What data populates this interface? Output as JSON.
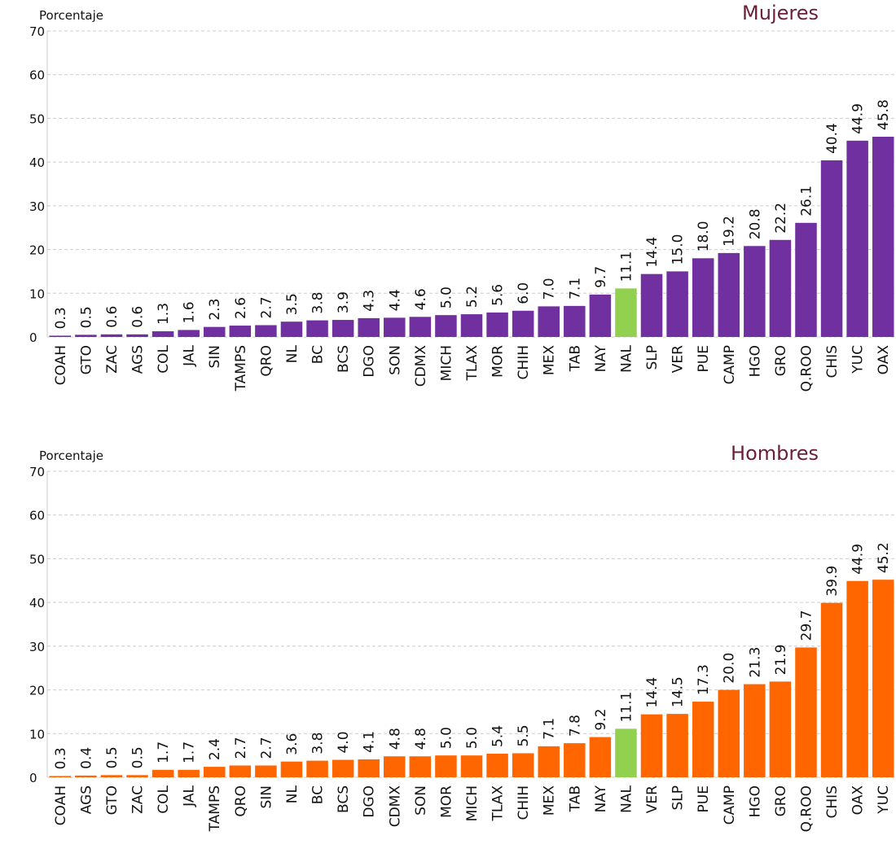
{
  "chart_data": [
    {
      "type": "bar",
      "title": "Mujeres",
      "y_label": "Porcentaje",
      "categories": [
        "COAH",
        "GTO",
        "ZAC",
        "AGS",
        "COL",
        "JAL",
        "SIN",
        "TAMPS",
        "QRO",
        "NL",
        "BC",
        "BCS",
        "DGO",
        "SON",
        "CDMX",
        "MICH",
        "TLAX",
        "MOR",
        "CHIH",
        "MEX",
        "TAB",
        "NAY",
        "NAL",
        "SLP",
        "VER",
        "PUE",
        "CAMP",
        "HGO",
        "GRO",
        "Q.ROO",
        "CHIS",
        "YUC",
        "OAX"
      ],
      "values": [
        0.3,
        0.5,
        0.6,
        0.6,
        1.3,
        1.6,
        2.3,
        2.6,
        2.7,
        3.5,
        3.8,
        3.9,
        4.3,
        4.4,
        4.6,
        5.0,
        5.2,
        5.6,
        6.0,
        7.0,
        7.1,
        9.7,
        11.1,
        14.4,
        15.0,
        18.0,
        19.2,
        20.8,
        22.2,
        26.1,
        40.4,
        44.9,
        45.8
      ],
      "value_labels": [
        "0.3",
        "0.5",
        "0.6",
        "0.6",
        "1.3",
        "1.6",
        "2.3",
        "2.6",
        "2.7",
        "3.5",
        "3.8",
        "3.9",
        "4.3",
        "4.4",
        "4.6",
        "5.0",
        "5.2",
        "5.6",
        "6.0",
        "7.0",
        "7.1",
        "9.7",
        "11.1",
        "14.4",
        "15.0",
        "18.0",
        "19.2",
        "20.8",
        "22.2",
        "26.1",
        "40.4",
        "44.9",
        "45.8"
      ],
      "colors": [
        "#7030a0",
        "#7030a0",
        "#7030a0",
        "#7030a0",
        "#7030a0",
        "#7030a0",
        "#7030a0",
        "#7030a0",
        "#7030a0",
        "#7030a0",
        "#7030a0",
        "#7030a0",
        "#7030a0",
        "#7030a0",
        "#7030a0",
        "#7030a0",
        "#7030a0",
        "#7030a0",
        "#7030a0",
        "#7030a0",
        "#7030a0",
        "#7030a0",
        "#92d050",
        "#7030a0",
        "#7030a0",
        "#7030a0",
        "#7030a0",
        "#7030a0",
        "#7030a0",
        "#7030a0",
        "#7030a0",
        "#7030a0",
        "#7030a0"
      ],
      "ylim": [
        0,
        70
      ],
      "yticks": [
        0,
        10,
        20,
        30,
        40,
        50,
        60,
        70
      ],
      "grid": true
    },
    {
      "type": "bar",
      "title": "Hombres",
      "y_label": "Porcentaje",
      "categories": [
        "COAH",
        "AGS",
        "GTO",
        "ZAC",
        "COL",
        "JAL",
        "TAMPS",
        "QRO",
        "SIN",
        "NL",
        "BC",
        "BCS",
        "DGO",
        "CDMX",
        "SON",
        "MOR",
        "MICH",
        "TLAX",
        "CHIH",
        "MEX",
        "TAB",
        "NAY",
        "NAL",
        "VER",
        "SLP",
        "PUE",
        "CAMP",
        "HGO",
        "GRO",
        "Q.ROO",
        "CHIS",
        "OAX",
        "YUC"
      ],
      "values": [
        0.3,
        0.4,
        0.5,
        0.5,
        1.7,
        1.7,
        2.4,
        2.7,
        2.7,
        3.6,
        3.8,
        4.0,
        4.1,
        4.8,
        4.8,
        5.0,
        5.0,
        5.4,
        5.5,
        7.1,
        7.8,
        9.2,
        11.1,
        14.4,
        14.5,
        17.3,
        20.0,
        21.3,
        21.9,
        29.7,
        39.9,
        44.9,
        45.2
      ],
      "value_labels": [
        "0.3",
        "0.4",
        "0.5",
        "0.5",
        "1.7",
        "1.7",
        "2.4",
        "2.7",
        "2.7",
        "3.6",
        "3.8",
        "4.0",
        "4.1",
        "4.8",
        "4.8",
        "5.0",
        "5.0",
        "5.4",
        "5.5",
        "7.1",
        "7.8",
        "9.2",
        "11.1",
        "14.4",
        "14.5",
        "17.3",
        "20.0",
        "21.3",
        "21.9",
        "29.7",
        "39.9",
        "44.9",
        "45.2"
      ],
      "colors": [
        "#ff6600",
        "#ff6600",
        "#ff6600",
        "#ff6600",
        "#ff6600",
        "#ff6600",
        "#ff6600",
        "#ff6600",
        "#ff6600",
        "#ff6600",
        "#ff6600",
        "#ff6600",
        "#ff6600",
        "#ff6600",
        "#ff6600",
        "#ff6600",
        "#ff6600",
        "#ff6600",
        "#ff6600",
        "#ff6600",
        "#ff6600",
        "#ff6600",
        "#92d050",
        "#ff6600",
        "#ff6600",
        "#ff6600",
        "#ff6600",
        "#ff6600",
        "#ff6600",
        "#ff6600",
        "#ff6600",
        "#ff6600",
        "#ff6600"
      ],
      "ylim": [
        0,
        70
      ],
      "yticks": [
        0,
        10,
        20,
        30,
        40,
        50,
        60,
        70
      ],
      "grid": true
    }
  ]
}
